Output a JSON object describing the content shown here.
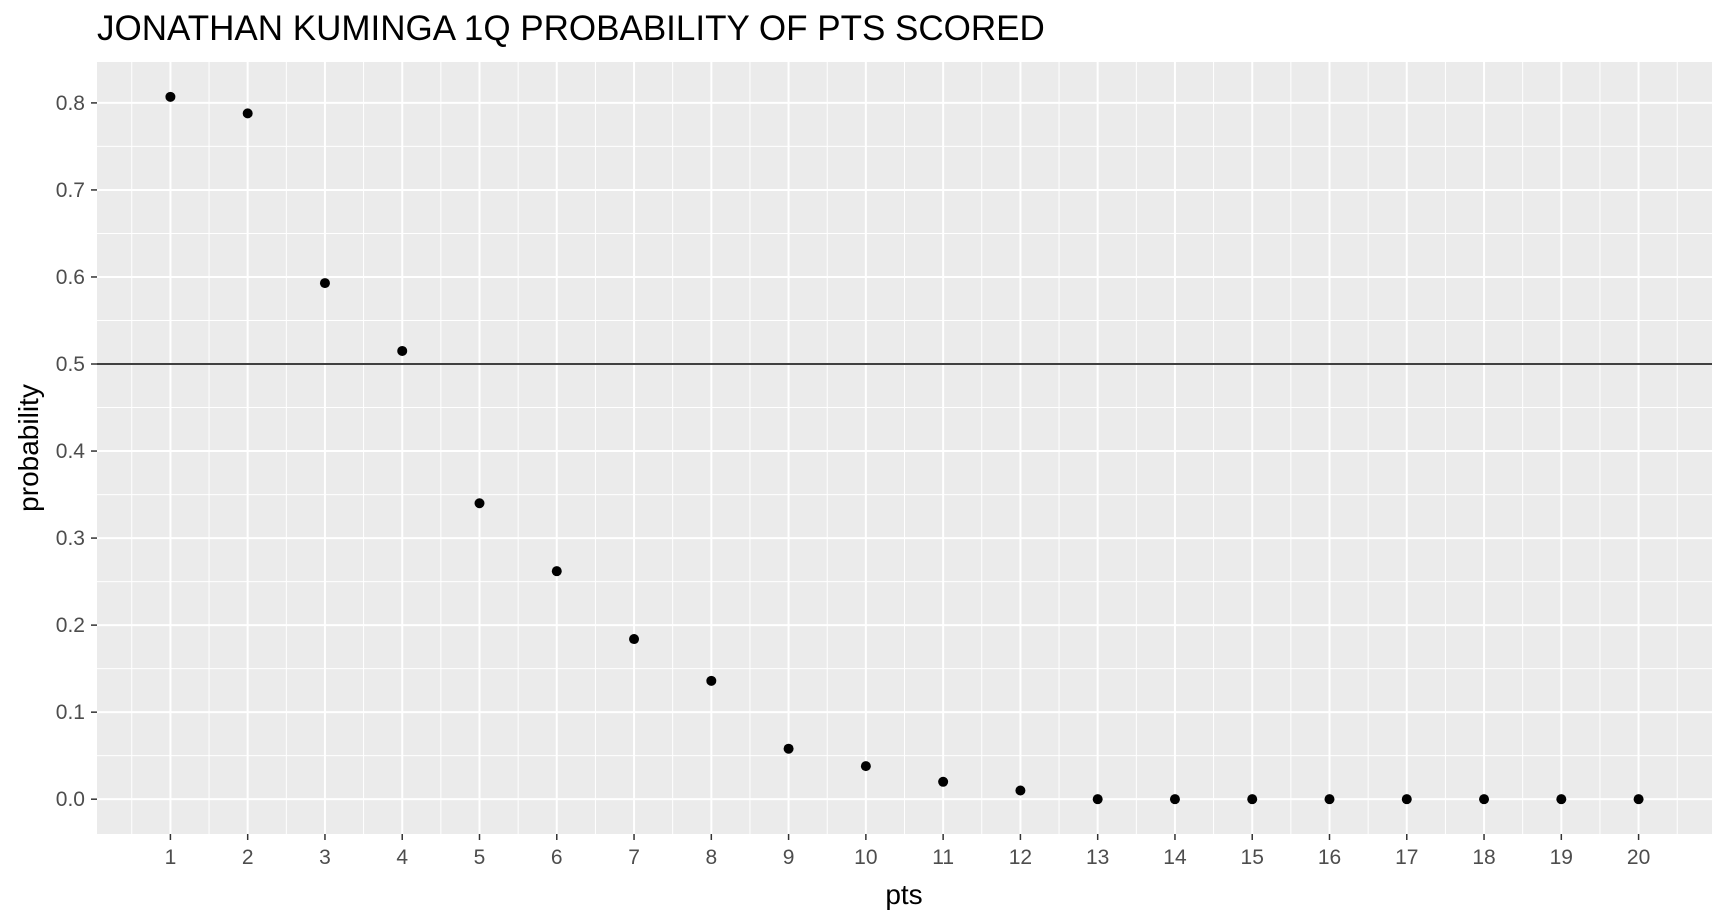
{
  "chart_data": {
    "type": "scatter",
    "title": "JONATHAN KUMINGA 1Q PROBABILITY OF PTS SCORED",
    "xlabel": "pts",
    "ylabel": "probability",
    "x": [
      1,
      2,
      3,
      4,
      5,
      6,
      7,
      8,
      9,
      10,
      11,
      12,
      13,
      14,
      15,
      16,
      17,
      18,
      19,
      20
    ],
    "y": [
      0.807,
      0.788,
      0.593,
      0.515,
      0.34,
      0.262,
      0.184,
      0.136,
      0.058,
      0.038,
      0.02,
      0.01,
      0.0,
      0.0,
      0.0,
      0.0,
      0.0,
      0.0,
      0.0,
      0.0
    ],
    "xticks": [
      "1",
      "2",
      "3",
      "4",
      "5",
      "6",
      "7",
      "8",
      "9",
      "10",
      "11",
      "12",
      "13",
      "14",
      "15",
      "16",
      "17",
      "18",
      "19",
      "20"
    ],
    "yticks": [
      "0.0",
      "0.1",
      "0.2",
      "0.3",
      "0.4",
      "0.5",
      "0.6",
      "0.7",
      "0.8"
    ],
    "xlim": [
      0.05,
      20.95
    ],
    "ylim": [
      -0.04,
      0.847
    ],
    "reference_line_y": 0.5,
    "grid": true,
    "colors": {
      "panel_background": "#ebebeb",
      "grid_line": "#ffffff",
      "point": "#000000",
      "reference_line": "#000000",
      "tick_mark": "#333333",
      "tick_label": "#4d4d4d",
      "title": "#000000"
    }
  }
}
